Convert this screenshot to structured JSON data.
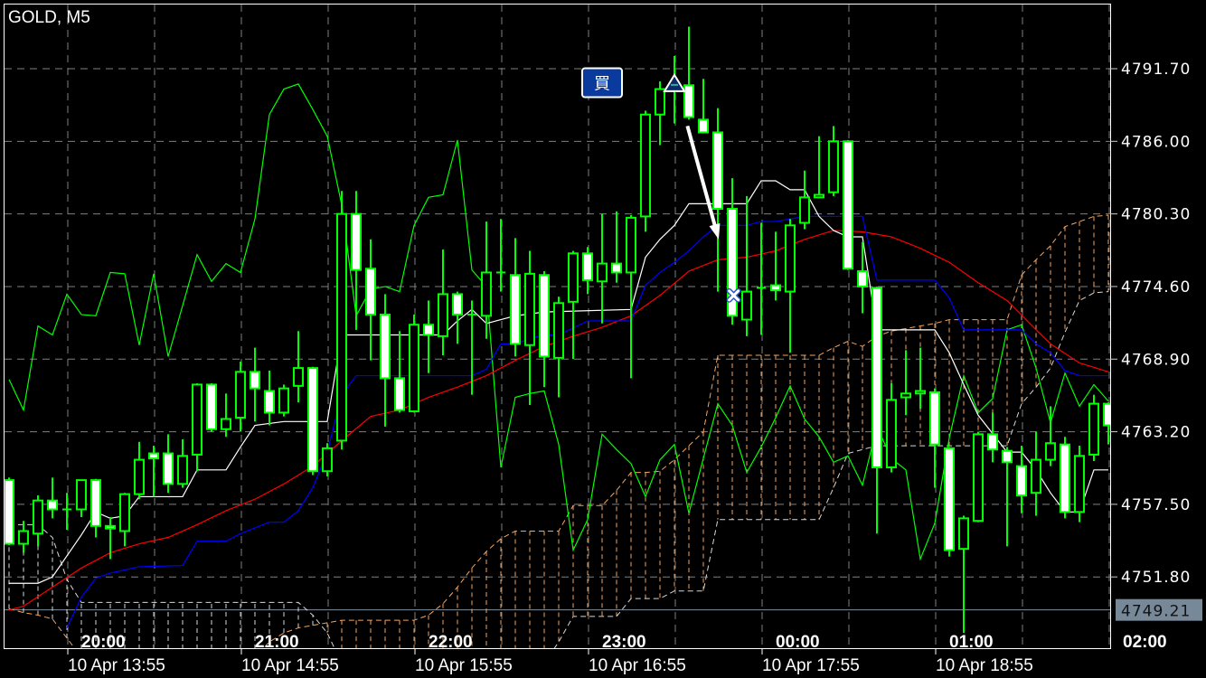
{
  "chart_data": {
    "type": "candlestick",
    "title": "GOLD, M5",
    "y_ticks": [
      "4791.70",
      "4786.00",
      "4780.30",
      "4774.60",
      "4768.90",
      "4763.20",
      "4757.50",
      "4751.80"
    ],
    "current_price": "4749.21",
    "time_labels_top": [
      "20:00",
      "21:00",
      "22:00",
      "23:00",
      "00:00",
      "01:00",
      "02:00"
    ],
    "time_labels_bottom": [
      "10 Apr 13:55",
      "10 Apr 14:55",
      "10 Apr 15:55",
      "10 Apr 16:55",
      "10 Apr 17:55",
      "10 Apr 18:55"
    ],
    "grid": true,
    "candles_ohlc": [
      [
        4759.4,
        4759.6,
        4754.3,
        4754.4
      ],
      [
        4754.4,
        4756.2,
        4753.7,
        4755.4
      ],
      [
        4755.2,
        4758.2,
        4754.2,
        4757.8
      ],
      [
        4757.8,
        4759.6,
        4756.4,
        4757.1
      ],
      [
        4757.1,
        4758.4,
        4755.5,
        4757.1
      ],
      [
        4757.1,
        4759.4,
        4756.5,
        4759.4
      ],
      [
        4759.4,
        4759.5,
        4754.9,
        4755.8
      ],
      [
        4755.8,
        4756.5,
        4753.2,
        4755.6
      ],
      [
        4755.4,
        4758.4,
        4754.2,
        4758.3
      ],
      [
        4758.3,
        4762.4,
        4757.9,
        4761.0
      ],
      [
        4761.5,
        4762.1,
        4758.1,
        4761.1
      ],
      [
        4761.5,
        4763.0,
        4758.4,
        4759.1
      ],
      [
        4759.1,
        4762.6,
        4758.8,
        4761.3
      ],
      [
        4761.4,
        4767.0,
        4760.1,
        4766.9
      ],
      [
        4766.9,
        4767.0,
        4763.2,
        4763.4
      ],
      [
        4763.4,
        4766.2,
        4762.8,
        4764.2
      ],
      [
        4764.3,
        4768.7,
        4763.2,
        4767.9
      ],
      [
        4767.9,
        4769.8,
        4764.0,
        4766.6
      ],
      [
        4766.4,
        4768.0,
        4763.7,
        4764.7
      ],
      [
        4764.7,
        4766.9,
        4764.4,
        4766.6
      ],
      [
        4766.8,
        4771.1,
        4765.5,
        4768.2
      ],
      [
        4768.2,
        4768.3,
        4759.8,
        4760.1
      ],
      [
        4760.1,
        4762.3,
        4759.7,
        4761.9
      ],
      [
        4762.5,
        4782.1,
        4761.8,
        4780.3
      ],
      [
        4780.3,
        4782.1,
        4771.2,
        4775.9
      ],
      [
        4776.0,
        4778.3,
        4768.8,
        4772.4
      ],
      [
        4772.4,
        4774.0,
        4763.6,
        4767.4
      ],
      [
        4767.4,
        4771.1,
        4764.7,
        4764.9
      ],
      [
        4764.8,
        4772.4,
        4764.7,
        4771.6
      ],
      [
        4771.6,
        4773.5,
        4767.8,
        4770.8
      ],
      [
        4770.7,
        4777.5,
        4769.2,
        4774.0
      ],
      [
        4774.0,
        4774.2,
        4770.1,
        4772.4
      ],
      [
        4772.4,
        4773.5,
        4766.1,
        4772.3
      ],
      [
        4772.3,
        4779.7,
        4770.5,
        4775.7
      ],
      [
        4775.7,
        4779.9,
        4774.2,
        4775.6
      ],
      [
        4775.5,
        4778.4,
        4769.1,
        4770.1
      ],
      [
        4770.0,
        4777.4,
        4765.3,
        4775.6
      ],
      [
        4775.5,
        4775.8,
        4766.7,
        4769.1
      ],
      [
        4769.0,
        4773.8,
        4765.9,
        4773.3
      ],
      [
        4773.4,
        4777.4,
        4768.9,
        4777.2
      ],
      [
        4777.2,
        4777.7,
        4774.0,
        4775.1
      ],
      [
        4775.0,
        4780.3,
        4771.7,
        4776.4
      ],
      [
        4776.4,
        4780.5,
        4774.9,
        4775.7
      ],
      [
        4775.7,
        4780.2,
        4767.4,
        4780.0
      ],
      [
        4780.1,
        4788.4,
        4778.9,
        4788.1
      ],
      [
        4788.1,
        4790.7,
        4785.7,
        4790.1
      ],
      [
        4790.1,
        4792.7,
        4787.4,
        4790.4
      ],
      [
        4790.4,
        4795.0,
        4787.7,
        4787.9
      ],
      [
        4787.7,
        4790.9,
        4786.7,
        4786.7
      ],
      [
        4786.7,
        4788.6,
        4774.2,
        4780.7
      ],
      [
        4780.7,
        4783.1,
        4771.6,
        4772.3
      ],
      [
        4772.0,
        4781.7,
        4770.7,
        4774.2
      ],
      [
        4774.4,
        4779.6,
        4770.8,
        4774.5
      ],
      [
        4774.7,
        4778.9,
        4773.5,
        4774.3
      ],
      [
        4774.2,
        4779.9,
        4769.4,
        4779.4
      ],
      [
        4779.6,
        4783.7,
        4779.1,
        4781.6
      ],
      [
        4781.6,
        4786.4,
        4781.6,
        4781.8
      ],
      [
        4782.0,
        4787.2,
        4781.7,
        4786.0
      ],
      [
        4786.0,
        4786.1,
        4775.9,
        4776.0
      ],
      [
        4775.8,
        4778.1,
        4772.5,
        4774.6
      ],
      [
        4774.5,
        4774.6,
        4755.2,
        4760.4
      ],
      [
        4760.4,
        4767.0,
        4760.0,
        4765.7
      ],
      [
        4765.9,
        4769.6,
        4764.5,
        4766.2
      ],
      [
        4766.2,
        4769.8,
        4765.0,
        4766.4
      ],
      [
        4766.3,
        4766.6,
        4758.8,
        4762.2
      ],
      [
        4761.9,
        4762.0,
        4753.4,
        4753.9
      ],
      [
        4754.0,
        4756.6,
        4747.4,
        4756.4
      ],
      [
        4756.2,
        4763.2,
        4756.1,
        4763.0
      ],
      [
        4763.0,
        4764.7,
        4760.8,
        4761.8
      ],
      [
        4761.7,
        4762.0,
        4754.2,
        4760.8
      ],
      [
        4760.5,
        4762.1,
        4756.8,
        4758.2
      ],
      [
        4758.4,
        4763.2,
        4756.6,
        4761.0
      ],
      [
        4761.0,
        4765.2,
        4760.5,
        4762.3
      ],
      [
        4762.2,
        4762.8,
        4756.4,
        4756.9
      ],
      [
        4756.9,
        4762.1,
        4756.1,
        4761.3
      ],
      [
        4761.4,
        4766.1,
        4760.9,
        4765.4
      ],
      [
        4765.4,
        4765.5,
        4762.2,
        4763.7
      ]
    ],
    "white_line": [
      [
        0,
        4751.3
      ],
      [
        2,
        4751.3
      ],
      [
        3,
        4751.8
      ],
      [
        5,
        4755.1
      ],
      [
        6,
        4756.9
      ],
      [
        7,
        4756.4
      ],
      [
        8,
        4756.6
      ],
      [
        9,
        4758.1
      ],
      [
        12,
        4758.1
      ],
      [
        13,
        4760.2
      ],
      [
        15,
        4760.2
      ],
      [
        16,
        4762.0
      ],
      [
        17,
        4763.7
      ],
      [
        19,
        4764.0
      ],
      [
        22,
        4764.0
      ],
      [
        23,
        4770.8
      ],
      [
        30,
        4770.8
      ],
      [
        31,
        4771.9
      ],
      [
        32,
        4772.8
      ],
      [
        33,
        4771.7
      ],
      [
        35,
        4772.3
      ],
      [
        37,
        4772.6
      ],
      [
        43,
        4772.8
      ],
      [
        44,
        4776.9
      ],
      [
        45,
        4778.3
      ],
      [
        46,
        4779.4
      ],
      [
        47,
        4781.1
      ],
      [
        51,
        4781.1
      ],
      [
        52,
        4782.9
      ],
      [
        53,
        4782.9
      ],
      [
        54,
        4782.2
      ],
      [
        55,
        4782.2
      ],
      [
        56,
        4780.1
      ],
      [
        57,
        4779.0
      ],
      [
        58,
        4778.5
      ],
      [
        59,
        4778.5
      ],
      [
        60,
        4771.2
      ],
      [
        64,
        4771.2
      ],
      [
        65,
        4769.4
      ],
      [
        66,
        4766.9
      ],
      [
        67,
        4764.5
      ],
      [
        69,
        4761.6
      ],
      [
        70,
        4761.6
      ],
      [
        71,
        4760.2
      ],
      [
        72,
        4758.4
      ],
      [
        73,
        4756.9
      ],
      [
        74,
        4756.9
      ],
      [
        75,
        4760.2
      ],
      [
        76,
        4760.2
      ]
    ],
    "blue_line": [
      [
        4,
        4747.8
      ],
      [
        5,
        4750.2
      ],
      [
        6,
        4751.7
      ],
      [
        7,
        4752.1
      ],
      [
        9,
        4752.6
      ],
      [
        12,
        4752.7
      ],
      [
        13,
        4754.6
      ],
      [
        15,
        4754.6
      ],
      [
        16,
        4755.2
      ],
      [
        18,
        4756.1
      ],
      [
        19,
        4756.1
      ],
      [
        20,
        4757.0
      ],
      [
        21,
        4758.8
      ],
      [
        22,
        4761.6
      ],
      [
        23,
        4766.1
      ],
      [
        24,
        4767.6
      ],
      [
        32,
        4767.6
      ],
      [
        33,
        4768.1
      ],
      [
        34,
        4770.1
      ],
      [
        35,
        4770.1
      ],
      [
        36,
        4770.5
      ],
      [
        37,
        4770.8
      ],
      [
        38,
        4770.8
      ],
      [
        40,
        4771.9
      ],
      [
        43,
        4771.9
      ],
      [
        44,
        4774.7
      ],
      [
        45,
        4775.7
      ],
      [
        46,
        4776.5
      ],
      [
        47,
        4777.4
      ],
      [
        48,
        4778.5
      ],
      [
        49,
        4779.4
      ],
      [
        51,
        4779.4
      ],
      [
        52,
        4779.7
      ],
      [
        53,
        4779.7
      ],
      [
        54,
        4779.9
      ],
      [
        55,
        4780.1
      ],
      [
        59,
        4780.1
      ],
      [
        60,
        4775.1
      ],
      [
        64,
        4775.1
      ],
      [
        65,
        4773.7
      ],
      [
        66,
        4771.2
      ],
      [
        70,
        4771.2
      ],
      [
        71,
        4770.1
      ],
      [
        72,
        4769.4
      ],
      [
        73,
        4768.0
      ],
      [
        74,
        4767.6
      ],
      [
        76,
        4767.6
      ]
    ],
    "red_line": [
      [
        0,
        4749.2
      ],
      [
        1,
        4749.5
      ],
      [
        3,
        4751.0
      ],
      [
        5,
        4752.5
      ],
      [
        7,
        4753.7
      ],
      [
        9,
        4754.4
      ],
      [
        11,
        4754.9
      ],
      [
        13,
        4755.9
      ],
      [
        15,
        4757.0
      ],
      [
        17,
        4757.9
      ],
      [
        19,
        4759.1
      ],
      [
        21,
        4760.5
      ],
      [
        23,
        4762.5
      ],
      [
        25,
        4764.4
      ],
      [
        27,
        4764.9
      ],
      [
        29,
        4765.9
      ],
      [
        31,
        4766.7
      ],
      [
        33,
        4767.6
      ],
      [
        35,
        4768.8
      ],
      [
        37,
        4769.9
      ],
      [
        39,
        4770.7
      ],
      [
        41,
        4771.4
      ],
      [
        43,
        4772.3
      ],
      [
        45,
        4773.9
      ],
      [
        47,
        4775.8
      ],
      [
        49,
        4776.7
      ],
      [
        51,
        4776.9
      ],
      [
        53,
        4777.4
      ],
      [
        55,
        4778.3
      ],
      [
        57,
        4779.0
      ],
      [
        59,
        4778.9
      ],
      [
        61,
        4778.5
      ],
      [
        63,
        4777.6
      ],
      [
        65,
        4776.5
      ],
      [
        67,
        4774.9
      ],
      [
        69,
        4773.5
      ],
      [
        71,
        4771.2
      ],
      [
        72,
        4770.1
      ],
      [
        74,
        4768.6
      ],
      [
        76,
        4767.9
      ]
    ],
    "green_line": [
      [
        0,
        4767.3
      ],
      [
        1,
        4764.9
      ],
      [
        2,
        4771.5
      ],
      [
        3,
        4770.8
      ],
      [
        4,
        4774.0
      ],
      [
        5,
        4772.4
      ],
      [
        6,
        4772.3
      ],
      [
        7,
        4775.7
      ],
      [
        8,
        4775.6
      ],
      [
        9,
        4770.0
      ],
      [
        10,
        4775.6
      ],
      [
        11,
        4769.1
      ],
      [
        13,
        4777.1
      ],
      [
        14,
        4775.0
      ],
      [
        15,
        4776.4
      ],
      [
        16,
        4775.7
      ],
      [
        17,
        4779.9
      ],
      [
        18,
        4788.1
      ],
      [
        19,
        4790.1
      ],
      [
        20,
        4790.5
      ],
      [
        21,
        4788.5
      ],
      [
        22,
        4786.4
      ],
      [
        23,
        4781.0
      ],
      [
        24,
        4772.3
      ],
      [
        25,
        4774.4
      ],
      [
        26,
        4774.6
      ],
      [
        27,
        4774.2
      ],
      [
        28,
        4779.4
      ],
      [
        29,
        4781.6
      ],
      [
        30,
        4781.8
      ],
      [
        31,
        4786.1
      ],
      [
        32,
        4775.9
      ],
      [
        33,
        4774.6
      ],
      [
        34,
        4760.4
      ],
      [
        35,
        4765.9
      ],
      [
        36,
        4766.2
      ],
      [
        37,
        4766.4
      ],
      [
        38,
        4762.2
      ],
      [
        39,
        4753.9
      ],
      [
        40,
        4756.3
      ],
      [
        41,
        4763.0
      ],
      [
        42,
        4761.8
      ],
      [
        43,
        4760.7
      ],
      [
        44,
        4758.1
      ],
      [
        45,
        4761.0
      ],
      [
        46,
        4762.2
      ],
      [
        47,
        4756.8
      ],
      [
        48,
        4761.1
      ],
      [
        49,
        4765.4
      ],
      [
        50,
        4763.7
      ],
      [
        51,
        4760.0
      ],
      [
        52,
        4762.0
      ],
      [
        53,
        4764.3
      ],
      [
        54,
        4766.8
      ],
      [
        55,
        4764.2
      ],
      [
        56,
        4762.8
      ],
      [
        57,
        4760.8
      ],
      [
        58,
        4761.3
      ],
      [
        59,
        4759.0
      ],
      [
        60,
        4763.6
      ],
      [
        61,
        4761.1
      ],
      [
        62,
        4760.2
      ],
      [
        63,
        4753.2
      ],
      [
        64,
        4756.0
      ],
      [
        65,
        4762.7
      ],
      [
        66,
        4767.6
      ],
      [
        67,
        4764.7
      ],
      [
        68,
        4765.8
      ],
      [
        69,
        4771.2
      ],
      [
        70,
        4771.6
      ],
      [
        71,
        4768.2
      ],
      [
        72,
        4763.9
      ],
      [
        73,
        4767.8
      ],
      [
        74,
        4765.2
      ],
      [
        75,
        4766.9
      ],
      [
        76,
        4765.6
      ]
    ],
    "cloud_orange": [
      4749.3,
      4749.0,
      4748.8,
      4748.5,
      4747.0,
      4745.5,
      4745.5,
      4745.5,
      4745.5,
      4745.5,
      4745.5,
      4745.5,
      4745.5,
      4745.5,
      4745.5,
      4745.5,
      4745.5,
      4745.5,
      4746.7,
      4747.4,
      4747.8,
      4748.0,
      4748.2,
      4748.4,
      4748.4,
      4748.4,
      4748.4,
      4748.4,
      4748.4,
      4748.8,
      4749.7,
      4751.0,
      4752.5,
      4753.8,
      4754.8,
      4755.4,
      4755.4,
      4755.4,
      4755.4,
      4757.4,
      4757.4,
      4757.4,
      4758.6,
      4760.0,
      4760.0,
      4760.1,
      4761.0,
      4762.1,
      4763.2,
      4769.2,
      4769.2,
      4769.2,
      4769.2,
      4769.2,
      4769.2,
      4769.2,
      4769.2,
      4769.8,
      4770.3,
      4769.9,
      4770.7,
      4771.1,
      4771.3,
      4771.5,
      4771.7,
      4772.0,
      4772.0,
      4772.0,
      4772.0,
      4772.0,
      4775.5,
      4776.7,
      4777.8,
      4779.3,
      4779.7,
      4780.1,
      4780.2
    ],
    "cloud_white": [
      4755.9,
      4755.9,
      4755.9,
      4754.9,
      4751.6,
      4749.8,
      4749.8,
      4749.8,
      4749.8,
      4749.8,
      4749.8,
      4749.8,
      4749.8,
      4749.8,
      4749.8,
      4749.8,
      4749.8,
      4749.8,
      4749.8,
      4749.8,
      4749.8,
      4748.8,
      4747.4,
      4745.0,
      4745.0,
      4745.0,
      4745.0,
      4745.0,
      4745.0,
      4745.0,
      4745.0,
      4745.0,
      4745.0,
      4745.0,
      4745.0,
      4745.0,
      4745.0,
      4745.0,
      4746.7,
      4748.7,
      4748.7,
      4748.7,
      4748.7,
      4750.1,
      4750.1,
      4750.1,
      4750.7,
      4750.7,
      4750.7,
      4756.3,
      4756.3,
      4756.3,
      4756.3,
      4756.3,
      4756.3,
      4756.3,
      4756.3,
      4758.8,
      4761.5,
      4761.8,
      4762.1,
      4762.1,
      4762.1,
      4762.1,
      4762.1,
      4762.1,
      4762.1,
      4762.1,
      4762.1,
      4762.1,
      4765.4,
      4766.7,
      4768.2,
      4771.0,
      4773.5,
      4774.1,
      4774.2
    ],
    "markers": {
      "buy_badge": {
        "label": "買",
        "bar": 41,
        "price": 4790.6
      },
      "entry_triangle": {
        "icon": "triangle-up-icon",
        "bar": 46,
        "price": 4790.5
      },
      "trend_arrow": {
        "from_bar": 46.9,
        "from_price": 4787.2,
        "to_bar": 49.06,
        "to_price": 4778.3
      },
      "exit_cross": {
        "icon": "x-icon",
        "bar": 50.1,
        "price": 4773.9
      }
    }
  },
  "colors": {
    "background": "#000000",
    "candle_outline": "#00ff00",
    "bear_fill": "#ffffff",
    "bull_fill": "#000000",
    "white_line": "#ffffff",
    "blue_line": "#0000ff",
    "red_line": "#ff0000",
    "green_line": "#00ff00",
    "cloud_orange": "#f4a460",
    "cloud_white": "#d8d8d8",
    "grid": "#808080",
    "current_price_box": "#778899",
    "buy_badge": "#0a3a9e"
  }
}
